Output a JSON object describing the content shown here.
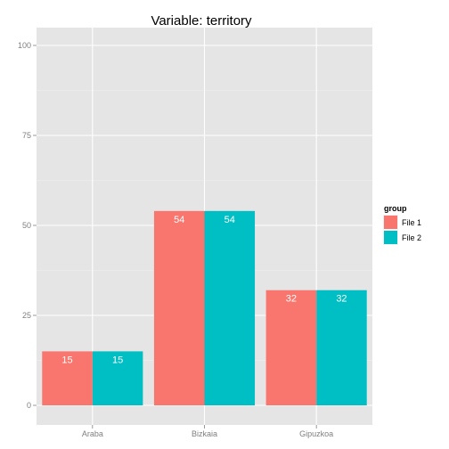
{
  "chart_data": {
    "type": "bar",
    "title": "Variable:  territory",
    "xlabel": "",
    "ylabel": "",
    "categories": [
      "Araba",
      "Bizkaia",
      "Gipuzkoa"
    ],
    "series": [
      {
        "name": "File 1",
        "values": [
          15,
          54,
          32
        ],
        "color": "#F8766D"
      },
      {
        "name": "File 2",
        "values": [
          15,
          54,
          32
        ],
        "color": "#00BFC4"
      }
    ],
    "data_labels": [
      [
        "15",
        "54",
        "32"
      ],
      [
        "15",
        "54",
        "32"
      ]
    ],
    "ylim": [
      0,
      100
    ],
    "yticks": [
      "0",
      "25",
      "50",
      "75",
      "100"
    ],
    "ytick_values": [
      0,
      25,
      50,
      75,
      100
    ],
    "grid": true,
    "legend": {
      "title": "group",
      "position": "right"
    },
    "panel_background": "#E5E5E5",
    "grid_color": "#FFFFFF"
  }
}
